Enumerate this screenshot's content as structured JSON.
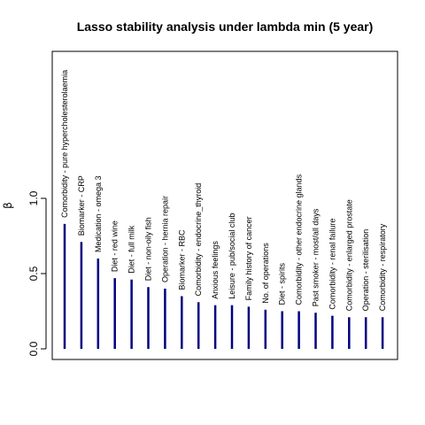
{
  "chart_data": {
    "type": "bar",
    "title": "Lasso stability analysis under lambda min (5 year)",
    "xlabel": "",
    "ylabel": "β",
    "ylim": [
      0,
      1.95
    ],
    "yticks": [
      "0.0",
      "0.5",
      "1.0"
    ],
    "bar_color": "#000080",
    "grid": false,
    "categories": [
      "Comorbidity - pure hypercholesterolaemia",
      "Biomarker - CRP",
      "Medication - omega 3",
      "Diet - red wine",
      "Diet - full milk",
      "Diet - non-oily fish",
      "Operation - hernia repair",
      "Biomarker - RBC",
      "Comorbidity - endocrine_thyroid",
      "Anxious feelings",
      "Leisure - pub/social club",
      "Family history of cancer",
      "No. of operations",
      "Diet - spirits",
      "Comorbidity - other endocrine glands",
      "Past smoker - most/all days",
      "Comorbidity - renal failure",
      "Comorbidity - enlarged prostate",
      "Operation - sterilisation",
      "Comorbidity - respiratory"
    ],
    "values": [
      0.83,
      0.71,
      0.6,
      0.47,
      0.46,
      0.41,
      0.4,
      0.35,
      0.31,
      0.29,
      0.29,
      0.28,
      0.26,
      0.25,
      0.25,
      0.24,
      0.22,
      0.21,
      0.21,
      0.21
    ]
  }
}
